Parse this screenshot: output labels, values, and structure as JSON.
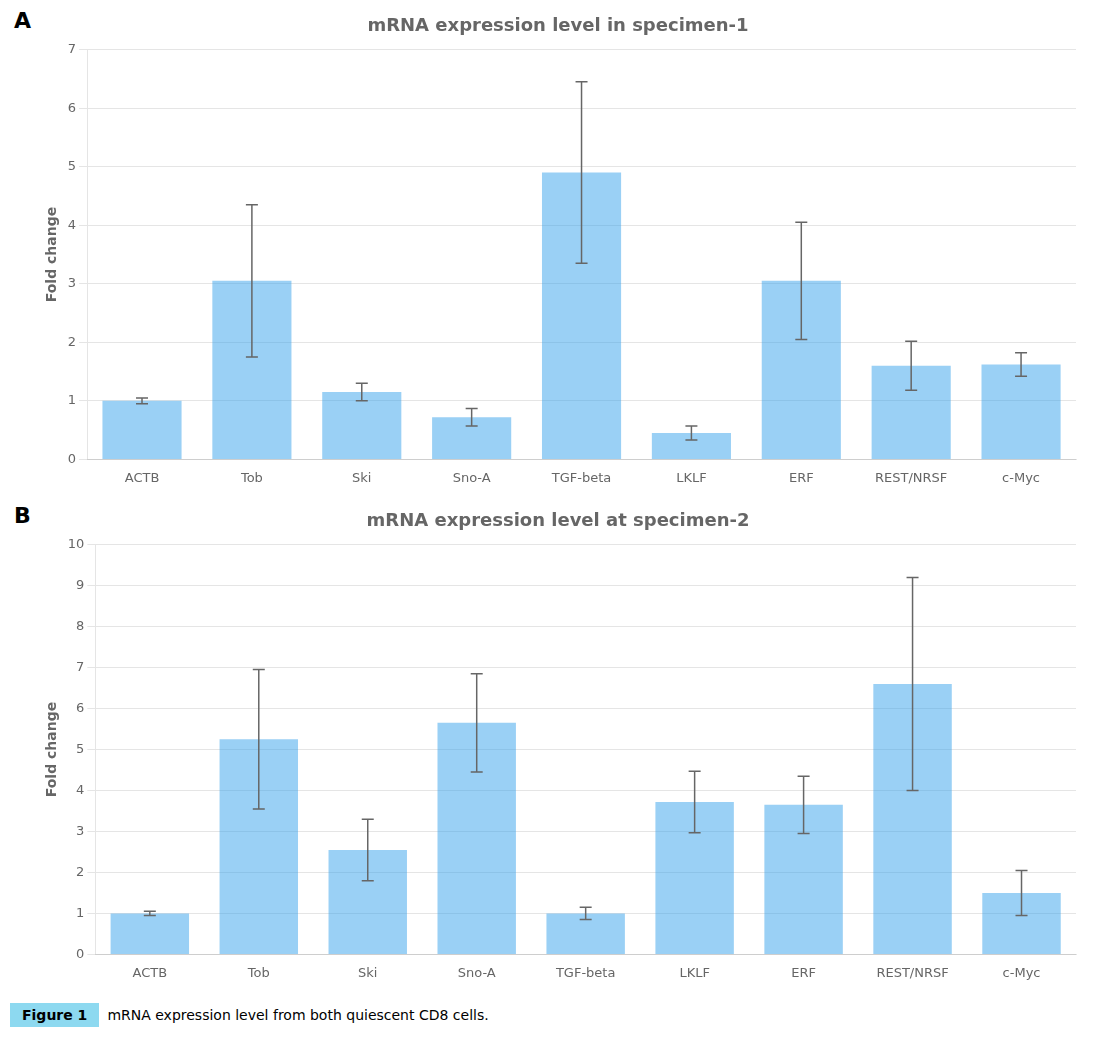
{
  "chart_data": [
    {
      "type": "bar",
      "title": "mRNA expression level in specimen-1",
      "categories": [
        "ACTB",
        "Tob",
        "Ski",
        "Sno-A",
        "TGF-beta",
        "LKLF",
        "ERF",
        "REST/NRSF",
        "c-Myc"
      ],
      "values": [
        1.0,
        3.05,
        1.15,
        0.72,
        4.9,
        0.45,
        3.05,
        1.6,
        1.62
      ],
      "errors": [
        0.05,
        1.3,
        0.15,
        0.15,
        1.55,
        0.12,
        1.0,
        0.42,
        0.2
      ],
      "ylabel": "Fold change",
      "ylim": [
        0,
        7
      ],
      "yticks": [
        0,
        1,
        2,
        3,
        4,
        5,
        6,
        7
      ],
      "grid": true,
      "annotations": [
        "A"
      ]
    },
    {
      "type": "bar",
      "title": "mRNA expression level at specimen-2",
      "categories": [
        "ACTB",
        "Tob",
        "Ski",
        "Sno-A",
        "TGF-beta",
        "LKLF",
        "ERF",
        "REST/NRSF",
        "c-Myc"
      ],
      "values": [
        1.0,
        5.25,
        2.55,
        5.65,
        1.0,
        3.72,
        3.65,
        6.6,
        1.5
      ],
      "errors": [
        0.05,
        1.7,
        0.75,
        1.2,
        0.15,
        0.75,
        0.7,
        2.6,
        0.55
      ],
      "ylabel": "Fold change",
      "ylim": [
        0,
        10
      ],
      "yticks": [
        0,
        1,
        2,
        3,
        4,
        5,
        6,
        7,
        8,
        9,
        10
      ],
      "grid": true,
      "annotations": [
        "B"
      ]
    }
  ],
  "caption": {
    "label": "Figure 1",
    "text": "mRNA expression level from both quiescent CD8 cells.",
    "color": "#8dd9f0"
  }
}
